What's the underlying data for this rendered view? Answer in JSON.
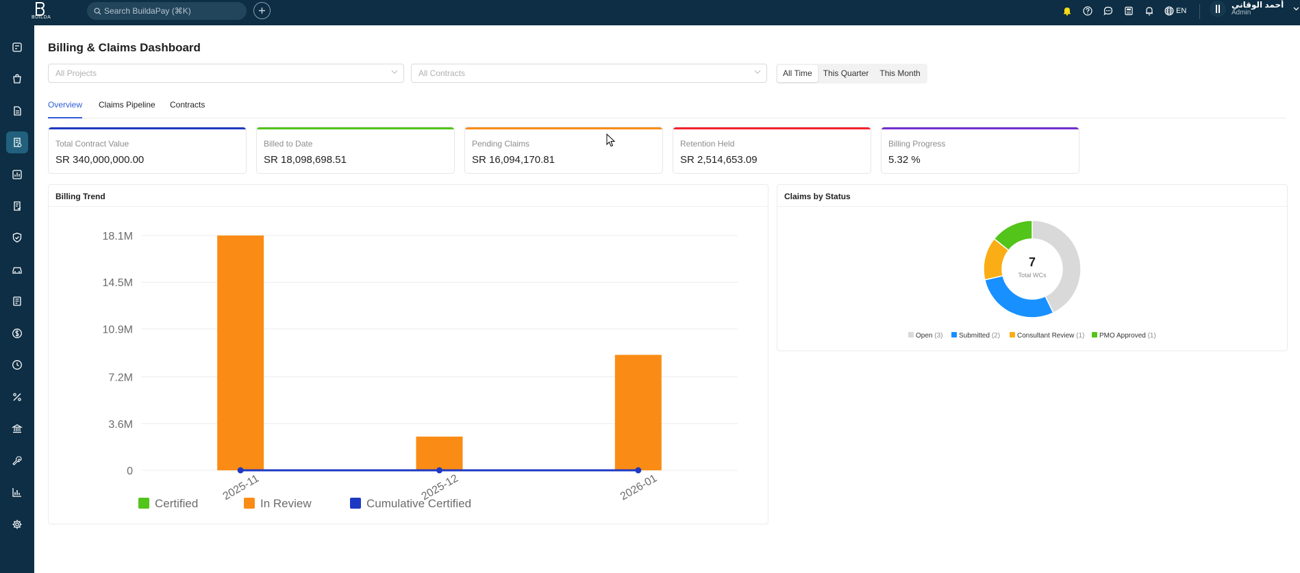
{
  "topbar": {
    "logo_text": "BUILDA",
    "search_placeholder": "Search BuildaPay (⌘K)",
    "language": "EN",
    "user_name": "أحمد الوقاني",
    "user_role": "Admin"
  },
  "page": {
    "title": "Billing & Claims Dashboard"
  },
  "filters": {
    "projects_placeholder": "All Projects",
    "contracts_placeholder": "All Contracts",
    "periods": [
      "All Time",
      "This Quarter",
      "This Month"
    ],
    "active_period": "All Time"
  },
  "tabs": [
    "Overview",
    "Claims Pipeline",
    "Contracts"
  ],
  "kpis": [
    {
      "label": "Total Contract Value",
      "value": "SR 340,000,000.00",
      "color": "#1d39c4"
    },
    {
      "label": "Billed to Date",
      "value": "SR 18,098,698.51",
      "color": "#52c41a"
    },
    {
      "label": "Pending Claims",
      "value": "SR 16,094,170.81",
      "color": "#fa8c16"
    },
    {
      "label": "Retention Held",
      "value": "SR 2,514,653.09",
      "color": "#f5222d"
    },
    {
      "label": "Billing Progress",
      "value": "5.32 %",
      "color": "#722ed1"
    }
  ],
  "billing_trend": {
    "title": "Billing Trend"
  },
  "claims_status": {
    "title": "Claims by Status",
    "center_value": "7",
    "center_label": "Total WCs"
  },
  "chart_data": [
    {
      "type": "bar",
      "title": "Billing Trend",
      "categories": [
        "2025-11",
        "2025-12",
        "2026-01"
      ],
      "yticks": [
        "0",
        "3.6M",
        "7.2M",
        "10.9M",
        "14.5M",
        "18.1M"
      ],
      "ytick_values": [
        0,
        3.6,
        7.2,
        10.9,
        14.5,
        18.1
      ],
      "ylim": [
        0,
        18.1
      ],
      "series": [
        {
          "name": "Certified",
          "type": "bar",
          "color": "#52c41a",
          "values": [
            0,
            0,
            0
          ]
        },
        {
          "name": "In Review",
          "type": "bar",
          "color": "#fa8c16",
          "values": [
            18.1,
            2.6,
            8.9
          ]
        },
        {
          "name": "Cumulative Certified",
          "type": "line",
          "color": "#1d39c4",
          "values": [
            0,
            0,
            0
          ]
        }
      ],
      "legend": "bottom-left",
      "grid": true
    },
    {
      "type": "pie",
      "title": "Claims by Status",
      "slices": [
        {
          "label": "Open",
          "count": "(3)",
          "value": 3,
          "color": "#d9d9d9"
        },
        {
          "label": "Submitted",
          "count": "(2)",
          "value": 2,
          "color": "#1890ff"
        },
        {
          "label": "Consultant Review",
          "count": "(1)",
          "value": 1,
          "color": "#faad14"
        },
        {
          "label": "PMO Approved",
          "count": "(1)",
          "value": 1,
          "color": "#52c41a"
        }
      ],
      "legend": "bottom"
    }
  ]
}
